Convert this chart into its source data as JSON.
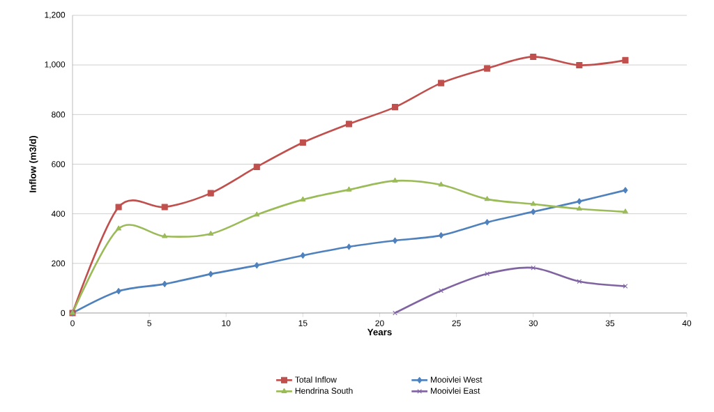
{
  "chart_data": {
    "type": "line",
    "xlabel": "Years",
    "ylabel": "Inflow (m3/d)",
    "x": [
      0,
      3,
      6,
      9,
      12,
      15,
      18,
      21,
      24,
      27,
      30,
      33,
      36
    ],
    "series": [
      {
        "name": "Total Inflow",
        "color": "#c0504d",
        "marker": "square",
        "values": [
          0,
          427,
          427,
          483,
          589,
          687,
          762,
          830,
          927,
          986,
          1033,
          999,
          1019
        ]
      },
      {
        "name": "Mooivlei West",
        "color": "#4f81bd",
        "marker": "diamond",
        "values": [
          0,
          88,
          117,
          157,
          192,
          232,
          267,
          292,
          313,
          366,
          408,
          450,
          495
        ]
      },
      {
        "name": "Hendrina South",
        "color": "#9bbb59",
        "marker": "triangle",
        "values": [
          0,
          340,
          309,
          319,
          396,
          457,
          497,
          533,
          517,
          459,
          439,
          420,
          408
        ]
      },
      {
        "name": "Mooivlei East",
        "color": "#8064a2",
        "marker": "cross",
        "x": [
          21,
          24,
          27,
          30,
          33,
          36
        ],
        "values": [
          0,
          90,
          158,
          182,
          127,
          108
        ]
      }
    ],
    "xlim": [
      0,
      40
    ],
    "xticks": [
      0,
      5,
      10,
      15,
      20,
      25,
      30,
      35,
      40
    ],
    "ylim": [
      0,
      1200
    ],
    "yticks": [
      0,
      200,
      400,
      600,
      800,
      {
        "value": 1000,
        "label": "1,000"
      },
      {
        "value": 1200,
        "label": "1,200"
      }
    ],
    "grid": "y",
    "legend": "bottom",
    "line_style": "solid"
  }
}
